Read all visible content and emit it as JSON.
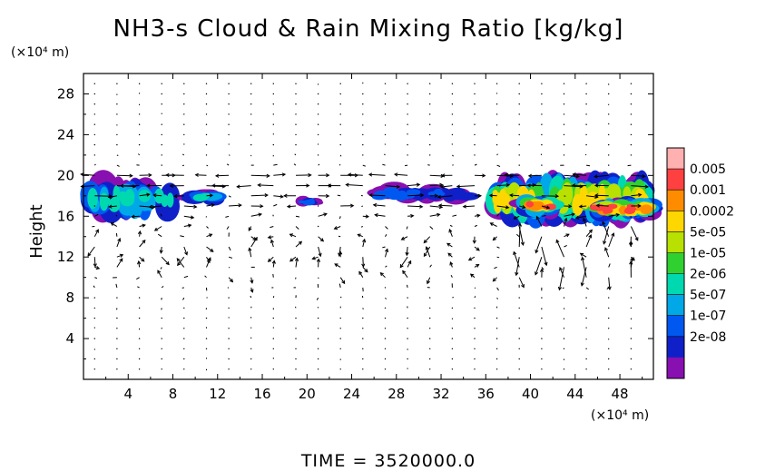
{
  "chart_data": {
    "type": "heatmap",
    "title": "NH3-s Cloud & Rain Mixing Ratio [kg/kg]",
    "xlabel": "",
    "ylabel": "Height",
    "x_unit": "(×10⁴ m)",
    "y_unit": "(×10⁴ m)",
    "xlim": [
      0,
      51
    ],
    "ylim": [
      0,
      30
    ],
    "xticks": [
      4,
      8,
      12,
      16,
      20,
      24,
      28,
      32,
      36,
      40,
      44,
      48
    ],
    "yticks": [
      4,
      8,
      12,
      16,
      20,
      24,
      28
    ],
    "colorbar": {
      "labels": [
        "0.005",
        "0.001",
        "0.0002",
        "5e-05",
        "1e-05",
        "2e-06",
        "5e-07",
        "1e-07",
        "2e-08"
      ],
      "colors": [
        "#ffb0b0",
        "#ff4040",
        "#ff8c00",
        "#ffd700",
        "#b8e000",
        "#30d030",
        "#00d8b0",
        "#00a8e8",
        "#0058f0",
        "#1020c8",
        "#8810b0"
      ]
    },
    "cloud_layer": {
      "base_km_e4": 16,
      "top_km_e4": 19,
      "max_class_index": 1,
      "segments": [
        {
          "x": [
            0,
            8.5
          ],
          "y": [
            16,
            19.2
          ],
          "level": 6
        },
        {
          "x": [
            9.5,
            12
          ],
          "y": [
            17.4,
            18.6
          ],
          "level": 6
        },
        {
          "x": [
            19.5,
            21
          ],
          "y": [
            17,
            17.8
          ],
          "level": 8
        },
        {
          "x": [
            26,
            35
          ],
          "y": [
            17.5,
            18.8
          ],
          "level": 8
        },
        {
          "x": [
            36,
            51
          ],
          "y": [
            15.8,
            19.5
          ],
          "level": 3
        },
        {
          "x": [
            39.5,
            42
          ],
          "y": [
            16.2,
            17.8
          ],
          "level": 1
        },
        {
          "x": [
            45.5,
            51
          ],
          "y": [
            16,
            17.5
          ],
          "level": 1
        }
      ]
    },
    "vectors": "wind field arrows on 2x1 grid, strongest near 16–20 ×10⁴ m"
  },
  "footer": {
    "time_label": "TIME = 3520000.0"
  }
}
